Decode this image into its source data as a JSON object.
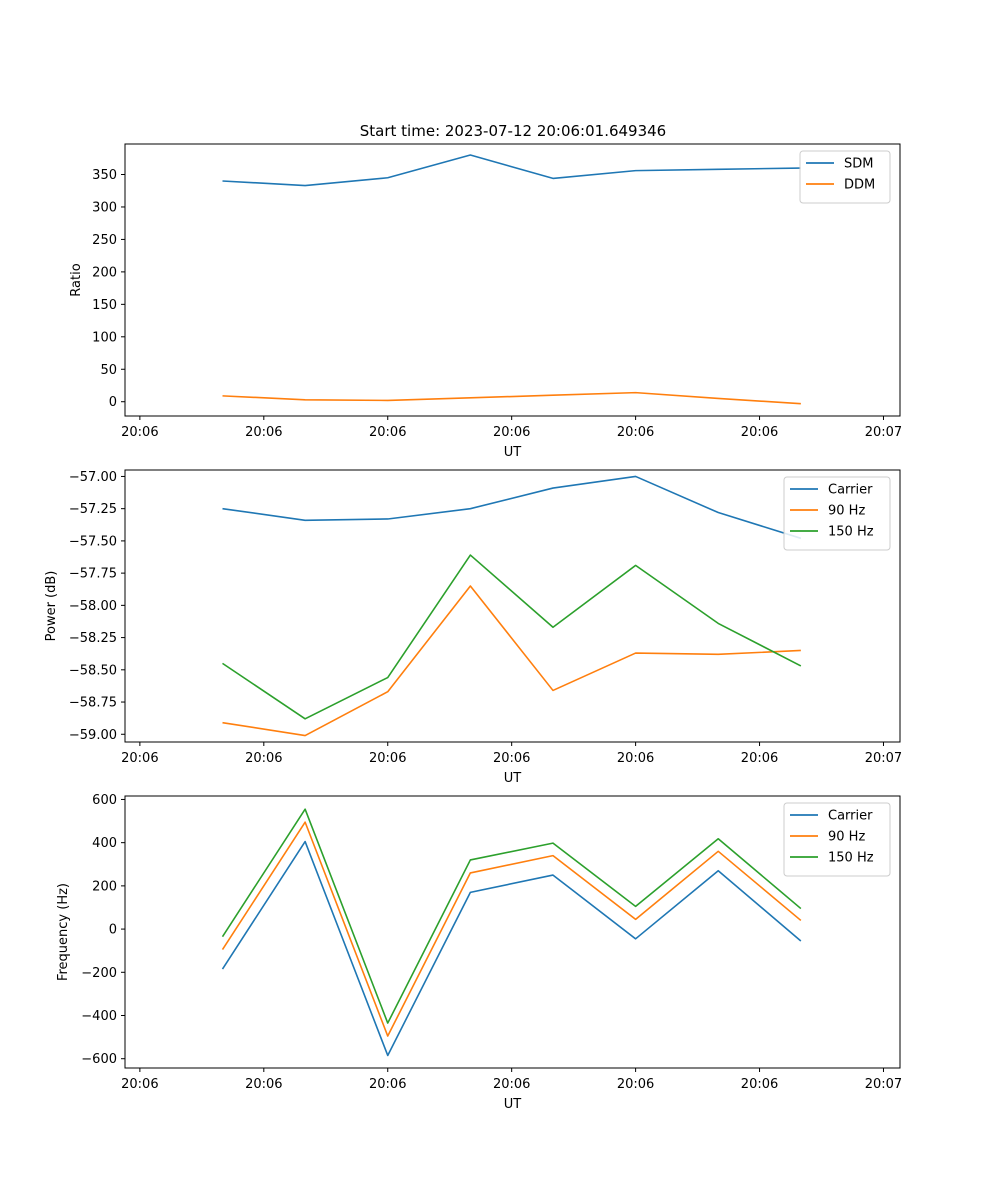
{
  "figure_title": "Start time: 2023-07-12 20:06:01.649346",
  "chart_data": [
    {
      "type": "line",
      "title": "Start time: 2023-07-12 20:06:01.649346",
      "xlabel": "UT",
      "ylabel": "Ratio",
      "x_ticks": [
        "20:06",
        "20:06",
        "20:06",
        "20:06",
        "20:06",
        "20:06",
        "20:07"
      ],
      "x": [
        0.5,
        1.0,
        1.5,
        2.0,
        2.5,
        3.0,
        3.5,
        4.0
      ],
      "xlim": [
        -0.09,
        4.6
      ],
      "ylim": [
        -22,
        397
      ],
      "y_ticks": [
        0,
        50,
        100,
        150,
        200,
        250,
        300,
        350
      ],
      "y_tick_labels": [
        "0",
        "50",
        "100",
        "150",
        "200",
        "250",
        "300",
        "350"
      ],
      "legend_loc": "top-right",
      "series": [
        {
          "name": "SDM",
          "color": "#1f77b4",
          "values": [
            340,
            333,
            345,
            380,
            344,
            356,
            358,
            360
          ]
        },
        {
          "name": "DDM",
          "color": "#ff7f0e",
          "values": [
            9,
            3,
            2,
            6,
            10,
            14,
            5,
            -3
          ]
        }
      ]
    },
    {
      "type": "line",
      "xlabel": "UT",
      "ylabel": "Power (dB)",
      "x_ticks": [
        "20:06",
        "20:06",
        "20:06",
        "20:06",
        "20:06",
        "20:06",
        "20:07"
      ],
      "x": [
        0.5,
        1.0,
        1.5,
        2.0,
        2.5,
        3.0,
        3.5,
        4.0
      ],
      "xlim": [
        -0.09,
        4.6
      ],
      "ylim": [
        -59.06,
        -56.95
      ],
      "y_ticks": [
        -59.0,
        -58.75,
        -58.5,
        -58.25,
        -58.0,
        -57.75,
        -57.5,
        -57.25,
        -57.0
      ],
      "y_tick_labels": [
        "−59.00",
        "−58.75",
        "−58.50",
        "−58.25",
        "−58.00",
        "−57.75",
        "−57.50",
        "−57.25",
        "−57.00"
      ],
      "legend_loc": "top-right",
      "series": [
        {
          "name": "Carrier",
          "color": "#1f77b4",
          "values": [
            -57.25,
            -57.34,
            -57.33,
            -57.25,
            -57.09,
            -57.0,
            -57.28,
            -57.48
          ]
        },
        {
          "name": "90 Hz",
          "color": "#ff7f0e",
          "values": [
            -58.91,
            -59.01,
            -58.67,
            -57.85,
            -58.66,
            -58.37,
            -58.38,
            -58.35
          ]
        },
        {
          "name": "150 Hz",
          "color": "#2ca02c",
          "values": [
            -58.45,
            -58.88,
            -58.56,
            -57.61,
            -58.17,
            -57.69,
            -58.14,
            -58.47
          ]
        }
      ]
    },
    {
      "type": "line",
      "xlabel": "UT",
      "ylabel": "Frequency (Hz)",
      "x_ticks": [
        "20:06",
        "20:06",
        "20:06",
        "20:06",
        "20:06",
        "20:06",
        "20:07"
      ],
      "x": [
        0.5,
        1.0,
        1.5,
        2.0,
        2.5,
        3.0,
        3.5,
        4.0
      ],
      "xlim": [
        -0.09,
        4.6
      ],
      "ylim": [
        -643,
        616
      ],
      "y_ticks": [
        -600,
        -400,
        -200,
        0,
        200,
        400,
        600
      ],
      "y_tick_labels": [
        "−600",
        "−400",
        "−200",
        "0",
        "200",
        "400",
        "600"
      ],
      "legend_loc": "top-right",
      "series": [
        {
          "name": "Carrier",
          "color": "#1f77b4",
          "values": [
            -185,
            405,
            -585,
            170,
            250,
            -45,
            270,
            -55
          ]
        },
        {
          "name": "90 Hz",
          "color": "#ff7f0e",
          "values": [
            -95,
            495,
            -495,
            260,
            340,
            45,
            360,
            40
          ]
        },
        {
          "name": "150 Hz",
          "color": "#2ca02c",
          "values": [
            -35,
            555,
            -435,
            320,
            398,
            105,
            418,
            95
          ]
        }
      ]
    }
  ]
}
